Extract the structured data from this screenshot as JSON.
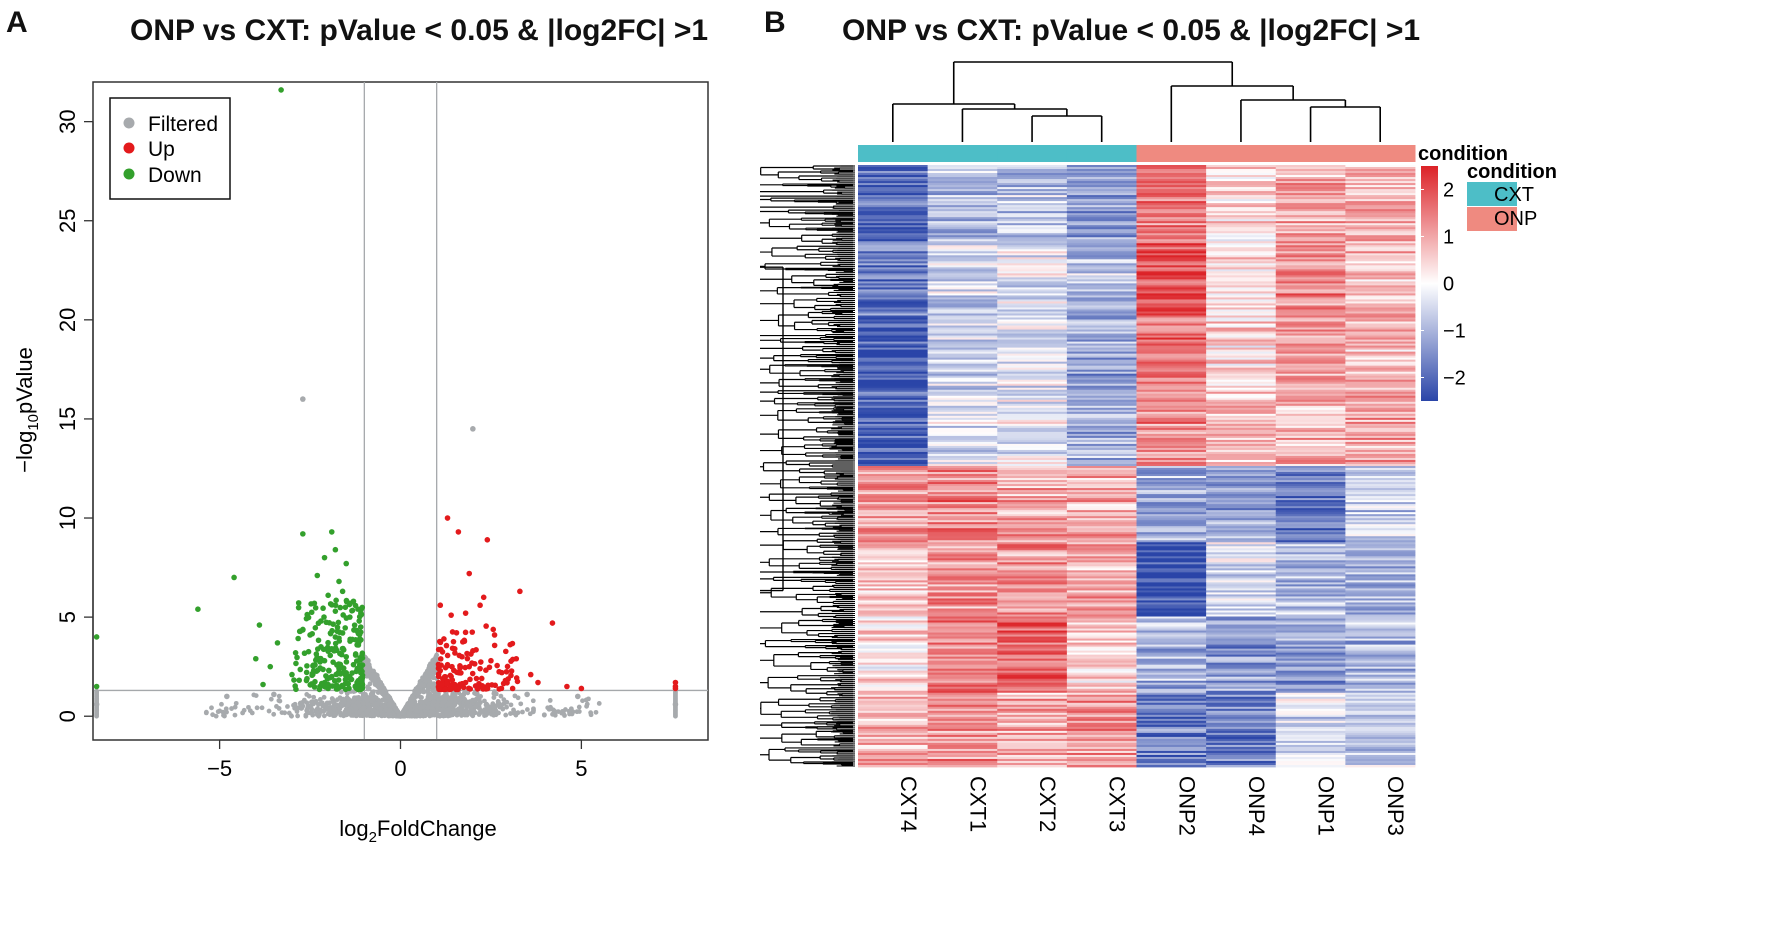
{
  "panel_a": {
    "letter": "A",
    "chart_data": {
      "type": "scatter",
      "title": "ONP vs CXT: pValue < 0.05 & |log2FC| >1",
      "xlabel_main": "log",
      "xlabel_sub": "2",
      "xlabel_rest": "FoldChange",
      "ylabel_main": "−log",
      "ylabel_sub": "10",
      "ylabel_rest": "pValue",
      "xlim": [
        -8.5,
        8.5
      ],
      "ylim": [
        -1.2,
        32
      ],
      "x_ticks": [
        -5,
        0,
        5
      ],
      "x_tick_labels": [
        "−5",
        "0",
        "5"
      ],
      "y_ticks": [
        0,
        5,
        10,
        15,
        20,
        25,
        30
      ],
      "y_tick_labels": [
        "0",
        "5",
        "10",
        "15",
        "20",
        "25",
        "30"
      ],
      "thresholds": {
        "log2fc": [
          -1,
          1
        ],
        "neg_log10_p": 1.3
      },
      "legend": {
        "position": "top-left",
        "entries": [
          {
            "label": "Filtered",
            "color": "#a7aaad"
          },
          {
            "label": "Up",
            "color": "#e31a1c"
          },
          {
            "label": "Down",
            "color": "#33a02c"
          }
        ]
      },
      "series": [
        {
          "name": "Up",
          "color": "#e31a1c",
          "points": [
            [
              1.3,
              10.0
            ],
            [
              1.6,
              9.3
            ],
            [
              2.4,
              8.9
            ],
            [
              1.9,
              7.2
            ],
            [
              3.3,
              6.3
            ],
            [
              2.3,
              6.0
            ],
            [
              2.2,
              5.6
            ],
            [
              1.1,
              5.6
            ],
            [
              1.8,
              5.2
            ],
            [
              1.4,
              5.1
            ],
            [
              4.2,
              4.7
            ],
            [
              2.6,
              4.1
            ],
            [
              1.2,
              3.9
            ],
            [
              1.5,
              3.4
            ],
            [
              2.0,
              3.3
            ],
            [
              1.7,
              3.0
            ],
            [
              3.2,
              2.9
            ],
            [
              2.5,
              2.8
            ],
            [
              1.3,
              2.6
            ],
            [
              1.9,
              2.5
            ],
            [
              2.2,
              2.4
            ],
            [
              1.1,
              2.3
            ],
            [
              2.8,
              2.2
            ],
            [
              1.6,
              2.2
            ],
            [
              3.6,
              2.1
            ],
            [
              1.4,
              2.0
            ],
            [
              2.1,
              1.9
            ],
            [
              1.2,
              1.8
            ],
            [
              2.9,
              1.8
            ],
            [
              1.8,
              1.7
            ],
            [
              3.8,
              1.7
            ],
            [
              1.5,
              1.6
            ],
            [
              2.4,
              1.5
            ],
            [
              4.6,
              1.5
            ],
            [
              1.1,
              1.5
            ],
            [
              3.1,
              1.4
            ],
            [
              5.0,
              1.4
            ],
            [
              7.6,
              1.7
            ],
            [
              7.6,
              1.5
            ],
            [
              7.6,
              1.4
            ]
          ]
        },
        {
          "name": "Down",
          "color": "#33a02c",
          "points": [
            [
              -3.3,
              31.6
            ],
            [
              -1.9,
              9.3
            ],
            [
              -2.7,
              9.2
            ],
            [
              -1.8,
              8.4
            ],
            [
              -2.1,
              8.0
            ],
            [
              -1.5,
              7.7
            ],
            [
              -2.3,
              7.1
            ],
            [
              -4.6,
              7.0
            ],
            [
              -1.7,
              6.8
            ],
            [
              -1.6,
              6.3
            ],
            [
              -2.0,
              6.1
            ],
            [
              -1.3,
              5.8
            ],
            [
              -5.6,
              5.4
            ],
            [
              -1.8,
              5.3
            ],
            [
              -1.4,
              5.0
            ],
            [
              -2.2,
              4.8
            ],
            [
              -3.9,
              4.6
            ],
            [
              -1.1,
              4.5
            ],
            [
              -1.6,
              4.2
            ],
            [
              -2.5,
              4.1
            ],
            [
              -3.4,
              3.7
            ],
            [
              -1.2,
              3.6
            ],
            [
              -1.9,
              3.4
            ],
            [
              -2.9,
              3.2
            ],
            [
              -1.5,
              3.0
            ],
            [
              -4.0,
              2.9
            ],
            [
              -2.1,
              2.8
            ],
            [
              -1.3,
              2.6
            ],
            [
              -3.6,
              2.5
            ],
            [
              -1.7,
              2.4
            ],
            [
              -2.4,
              2.3
            ],
            [
              -1.1,
              2.2
            ],
            [
              -3.0,
              2.1
            ],
            [
              -1.9,
              2.0
            ],
            [
              -1.4,
              1.9
            ],
            [
              -2.6,
              1.8
            ],
            [
              -1.2,
              1.7
            ],
            [
              -3.8,
              1.6
            ],
            [
              -1.6,
              1.5
            ],
            [
              -2.0,
              1.4
            ],
            [
              -8.4,
              4.0
            ],
            [
              -8.4,
              1.5
            ]
          ]
        },
        {
          "name": "Filtered",
          "color": "#a7aaad",
          "points": [
            [
              -2.7,
              16.0
            ],
            [
              2.0,
              14.5
            ],
            [
              -0.9,
              2.8
            ],
            [
              -0.7,
              2.0
            ],
            [
              -0.5,
              1.2
            ],
            [
              -0.3,
              0.6
            ],
            [
              0.3,
              0.6
            ],
            [
              0.5,
              1.2
            ],
            [
              0.7,
              2.0
            ],
            [
              0.9,
              2.8
            ],
            [
              -0.8,
              1.1
            ],
            [
              0.8,
              1.1
            ],
            [
              -4.8,
              1.0
            ],
            [
              4.9,
              1.0
            ],
            [
              -3.5,
              1.1
            ],
            [
              3.5,
              1.1
            ],
            [
              -8.4,
              0.6
            ],
            [
              7.6,
              0.6
            ]
          ]
        }
      ]
    }
  },
  "panel_b": {
    "letter": "B",
    "chart_data": {
      "type": "heatmap",
      "title": "ONP vs CXT: pValue < 0.05 & |log2FC| >1",
      "columns": [
        "CXT4",
        "CXT1",
        "CXT2",
        "CXT3",
        "ONP2",
        "ONP4",
        "ONP1",
        "ONP3"
      ],
      "column_condition": [
        "CXT",
        "CXT",
        "CXT",
        "CXT",
        "ONP",
        "ONP",
        "ONP",
        "ONP"
      ],
      "row_clusters": [
        {
          "name": "up_in_ONP",
          "block_means": [
            [
              -2.0,
              -0.9,
              -0.7,
              -1.4,
              1.5,
              0.4,
              0.9,
              0.9
            ],
            [
              -1.7,
              -0.5,
              -0.3,
              -0.8,
              1.9,
              0.3,
              1.3,
              0.7
            ],
            [
              -2.2,
              -0.6,
              -0.4,
              -1.2,
              1.6,
              0.5,
              1.1,
              0.8
            ],
            [
              -2.1,
              -0.4,
              -0.2,
              -1.0,
              1.2,
              0.7,
              0.8,
              1.0
            ]
          ]
        },
        {
          "name": "down_in_ONP",
          "block_means": [
            [
              1.2,
              1.4,
              1.0,
              0.9,
              -1.0,
              -1.2,
              -1.8,
              -0.6
            ],
            [
              0.8,
              1.1,
              1.2,
              1.0,
              -2.4,
              -0.4,
              -0.9,
              -1.0
            ],
            [
              0.3,
              1.5,
              1.7,
              0.6,
              -1.0,
              -1.4,
              -1.3,
              -0.9
            ],
            [
              0.8,
              1.2,
              0.9,
              1.1,
              -1.7,
              -1.6,
              -0.4,
              -0.6
            ]
          ]
        }
      ],
      "legend_title": "condition",
      "annotation": {
        "title": "condition",
        "entries": [
          {
            "label": "CXT",
            "color": "#4dbec7"
          },
          {
            "label": "ONP",
            "color": "#ef8a80"
          }
        ]
      },
      "colorbar": {
        "range": [
          -2.5,
          2.5
        ],
        "ticks": [
          2,
          1,
          0,
          -1,
          -2
        ],
        "tick_labels": [
          "2",
          "1",
          "0",
          "−1",
          "−2"
        ],
        "low_color": "#2a45a8",
        "mid_color": "#ffffff",
        "high_color": "#dc2227"
      }
    }
  }
}
